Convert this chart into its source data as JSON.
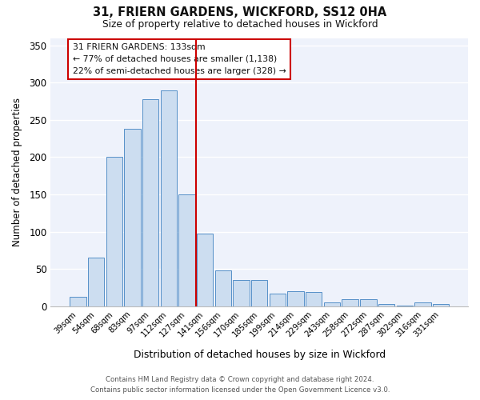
{
  "title": "31, FRIERN GARDENS, WICKFORD, SS12 0HA",
  "subtitle": "Size of property relative to detached houses in Wickford",
  "xlabel": "Distribution of detached houses by size in Wickford",
  "ylabel": "Number of detached properties",
  "bar_labels": [
    "39sqm",
    "54sqm",
    "68sqm",
    "83sqm",
    "97sqm",
    "112sqm",
    "127sqm",
    "141sqm",
    "156sqm",
    "170sqm",
    "185sqm",
    "199sqm",
    "214sqm",
    "229sqm",
    "243sqm",
    "258sqm",
    "272sqm",
    "287sqm",
    "302sqm",
    "316sqm",
    "331sqm"
  ],
  "bar_values": [
    13,
    65,
    200,
    238,
    278,
    290,
    150,
    97,
    48,
    35,
    35,
    17,
    20,
    19,
    5,
    9,
    9,
    3,
    1,
    5,
    3
  ],
  "bar_color": "#ccddf0",
  "bar_edge_color": "#5590c8",
  "ylim": [
    0,
    360
  ],
  "yticks": [
    0,
    50,
    100,
    150,
    200,
    250,
    300,
    350
  ],
  "vline_index": 6.5,
  "vline_color": "#cc0000",
  "annotation_title": "31 FRIERN GARDENS: 133sqm",
  "annotation_line1": "← 77% of detached houses are smaller (1,138)",
  "annotation_line2": "22% of semi-detached houses are larger (328) →",
  "annotation_box_edgecolor": "#cc0000",
  "annotation_box_facecolor": "#ffffff",
  "background_color": "#eef2fb",
  "grid_color": "#ffffff",
  "fig_facecolor": "#ffffff",
  "footer_line1": "Contains HM Land Registry data © Crown copyright and database right 2024.",
  "footer_line2": "Contains public sector information licensed under the Open Government Licence v3.0."
}
